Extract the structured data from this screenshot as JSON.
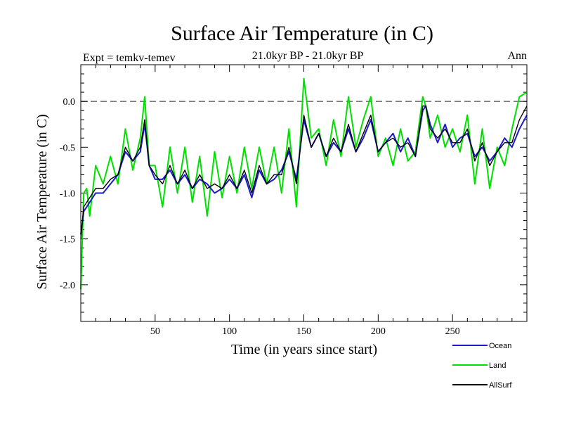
{
  "chart_data": {
    "type": "line",
    "title": "Surface Air Temperature (in C)",
    "subtitle": "21.0kyr BP - 21.0kyr BP",
    "expt_label": "Expt = temkv-temev",
    "season_label": "Ann",
    "xlabel": "Time (in years since start)",
    "ylabel": "Surface Air Temperature (in C)",
    "xlim": [
      0,
      300
    ],
    "ylim": [
      -2.4,
      0.4
    ],
    "xticks": [
      50,
      100,
      150,
      200,
      250
    ],
    "xtick_labels": [
      "50",
      "100",
      "150",
      "200",
      "250"
    ],
    "yticks": [
      0.0,
      -0.5,
      -1.0,
      -1.5,
      -2.0
    ],
    "ytick_labels": [
      "0.0",
      "-0.5",
      "-1.0",
      "-1.5",
      "-2.0"
    ],
    "reference_line": 0.0,
    "legend_position": "bottom-right",
    "series": [
      {
        "name": "Ocean",
        "color": "#1a1acc",
        "x": [
          0,
          2,
          4,
          6,
          10,
          15,
          20,
          25,
          30,
          35,
          40,
          43,
          46,
          50,
          55,
          60,
          65,
          70,
          75,
          80,
          85,
          90,
          95,
          100,
          105,
          110,
          115,
          120,
          125,
          130,
          135,
          140,
          145,
          150,
          155,
          160,
          165,
          170,
          175,
          180,
          185,
          190,
          195,
          200,
          205,
          210,
          215,
          220,
          225,
          230,
          232,
          235,
          240,
          245,
          250,
          255,
          260,
          265,
          270,
          275,
          280,
          285,
          290,
          295,
          300
        ],
        "values": [
          -1.45,
          -1.2,
          -1.15,
          -1.1,
          -1.0,
          -1.0,
          -0.9,
          -0.8,
          -0.55,
          -0.65,
          -0.55,
          -0.25,
          -0.7,
          -0.85,
          -0.85,
          -0.75,
          -0.9,
          -0.8,
          -0.95,
          -0.85,
          -0.9,
          -1.0,
          -0.95,
          -0.85,
          -0.95,
          -0.8,
          -1.05,
          -0.75,
          -0.9,
          -0.85,
          -0.75,
          -0.55,
          -0.85,
          -0.2,
          -0.5,
          -0.35,
          -0.6,
          -0.45,
          -0.55,
          -0.3,
          -0.55,
          -0.4,
          -0.2,
          -0.55,
          -0.45,
          -0.35,
          -0.55,
          -0.4,
          -0.6,
          -0.1,
          -0.05,
          -0.25,
          -0.45,
          -0.25,
          -0.5,
          -0.4,
          -0.35,
          -0.6,
          -0.5,
          -0.65,
          -0.55,
          -0.4,
          -0.5,
          -0.3,
          -0.15
        ]
      },
      {
        "name": "Land",
        "color": "#00e000",
        "x": [
          0,
          2,
          4,
          6,
          10,
          15,
          20,
          25,
          30,
          35,
          40,
          43,
          46,
          50,
          55,
          60,
          65,
          70,
          75,
          80,
          85,
          90,
          95,
          100,
          105,
          110,
          115,
          120,
          125,
          130,
          135,
          140,
          145,
          150,
          155,
          160,
          165,
          170,
          175,
          180,
          185,
          190,
          195,
          200,
          205,
          210,
          215,
          220,
          225,
          230,
          232,
          235,
          240,
          245,
          250,
          255,
          260,
          265,
          270,
          275,
          280,
          285,
          290,
          295,
          300
        ],
        "values": [
          -2.05,
          -1.0,
          -0.95,
          -1.25,
          -0.7,
          -0.9,
          -0.6,
          -0.9,
          -0.3,
          -0.75,
          -0.4,
          0.05,
          -0.7,
          -0.7,
          -1.15,
          -0.5,
          -1.0,
          -0.5,
          -1.1,
          -0.6,
          -1.25,
          -0.55,
          -1.05,
          -0.6,
          -1.0,
          -0.5,
          -0.95,
          -0.5,
          -0.9,
          -0.5,
          -1.0,
          -0.3,
          -1.15,
          0.25,
          -0.4,
          -0.3,
          -0.7,
          -0.2,
          -0.6,
          0.05,
          -0.5,
          -0.2,
          0.05,
          -0.6,
          -0.4,
          -0.7,
          -0.3,
          -0.65,
          -0.55,
          0.05,
          -0.05,
          -0.4,
          -0.15,
          -0.5,
          -0.3,
          -0.55,
          -0.15,
          -0.9,
          -0.3,
          -0.95,
          -0.5,
          -0.7,
          -0.3,
          0.05,
          0.1
        ]
      },
      {
        "name": "AllSurf",
        "color": "#000000",
        "x": [
          0,
          2,
          4,
          6,
          10,
          15,
          20,
          25,
          30,
          35,
          40,
          43,
          46,
          50,
          55,
          60,
          65,
          70,
          75,
          80,
          85,
          90,
          95,
          100,
          105,
          110,
          115,
          120,
          125,
          130,
          135,
          140,
          145,
          150,
          155,
          160,
          165,
          170,
          175,
          180,
          185,
          190,
          195,
          200,
          205,
          210,
          215,
          220,
          225,
          230,
          232,
          235,
          240,
          245,
          250,
          255,
          260,
          265,
          270,
          275,
          280,
          285,
          290,
          295,
          300
        ],
        "values": [
          -1.5,
          -1.15,
          -1.1,
          -1.05,
          -0.95,
          -0.95,
          -0.85,
          -0.8,
          -0.5,
          -0.65,
          -0.5,
          -0.2,
          -0.7,
          -0.8,
          -0.9,
          -0.7,
          -0.9,
          -0.75,
          -0.95,
          -0.8,
          -0.95,
          -0.9,
          -0.95,
          -0.8,
          -0.95,
          -0.75,
          -1.0,
          -0.7,
          -0.9,
          -0.8,
          -0.8,
          -0.5,
          -0.9,
          -0.15,
          -0.5,
          -0.35,
          -0.6,
          -0.4,
          -0.55,
          -0.25,
          -0.55,
          -0.35,
          -0.15,
          -0.55,
          -0.45,
          -0.4,
          -0.5,
          -0.45,
          -0.6,
          -0.05,
          -0.05,
          -0.3,
          -0.4,
          -0.3,
          -0.45,
          -0.45,
          -0.3,
          -0.65,
          -0.45,
          -0.7,
          -0.55,
          -0.45,
          -0.45,
          -0.2,
          -0.05
        ]
      }
    ]
  }
}
